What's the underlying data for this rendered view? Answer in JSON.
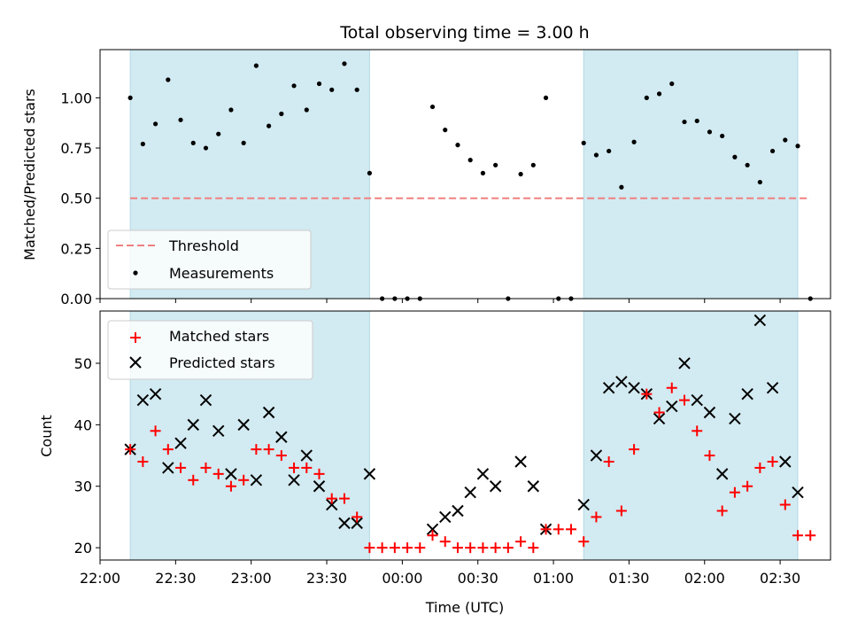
{
  "chart_data": [
    {
      "type": "scatter",
      "title": "Total observing time = 3.00 h",
      "xlabel": "",
      "ylabel": "Matched/Predicted stars",
      "ylim": [
        0,
        1.24
      ],
      "yticks": [
        "0.00",
        "0.25",
        "0.50",
        "0.75",
        "1.00"
      ],
      "ytick_values": [
        0,
        0.25,
        0.5,
        0.75,
        1.0
      ],
      "shaded_intervals": [
        [
          "22:12",
          "23:47"
        ],
        [
          "01:12",
          "02:37"
        ]
      ],
      "shade_color": "#add8e6",
      "threshold": {
        "name": "Threshold",
        "value": 0.5,
        "x_start": "22:12",
        "x_end": "02:42",
        "color": "#f08080"
      },
      "series": [
        {
          "name": "Measurements",
          "color": "#000000",
          "x": [
            "22:12",
            "22:17",
            "22:22",
            "22:27",
            "22:32",
            "22:37",
            "22:42",
            "22:47",
            "22:52",
            "22:57",
            "23:02",
            "23:07",
            "23:12",
            "23:17",
            "23:22",
            "23:27",
            "23:32",
            "23:37",
            "23:42",
            "23:47",
            "23:52",
            "23:57",
            "00:02",
            "00:07",
            "00:12",
            "00:17",
            "00:22",
            "00:27",
            "00:32",
            "00:37",
            "00:42",
            "00:47",
            "00:52",
            "00:57",
            "01:02",
            "01:07",
            "01:12",
            "01:17",
            "01:22",
            "01:27",
            "01:32",
            "01:37",
            "01:42",
            "01:47",
            "01:52",
            "01:57",
            "02:02",
            "02:07",
            "02:12",
            "02:17",
            "02:22",
            "02:27",
            "02:32",
            "02:37",
            "02:42"
          ],
          "y": [
            1.0,
            0.77,
            0.87,
            1.09,
            0.89,
            0.775,
            0.75,
            0.82,
            0.94,
            0.775,
            1.16,
            0.86,
            0.92,
            1.06,
            0.94,
            1.07,
            1.04,
            1.17,
            1.04,
            0.625,
            0,
            0,
            0,
            0,
            0.955,
            0.84,
            0.765,
            0.69,
            0.625,
            0.665,
            0,
            0.62,
            0.665,
            1.0,
            0,
            0,
            0.775,
            0.715,
            0.735,
            0.555,
            0.78,
            1.0,
            1.02,
            1.07,
            0.88,
            0.885,
            0.83,
            0.81,
            0.705,
            0.665,
            0.58,
            0.735,
            0.79,
            0.76,
            0
          ]
        }
      ]
    },
    {
      "type": "scatter",
      "title": "",
      "xlabel": "Time (UTC)",
      "ylabel": "Count",
      "ylim": [
        18,
        58.5
      ],
      "yticks": [
        "20",
        "30",
        "40",
        "50"
      ],
      "ytick_values": [
        20,
        30,
        40,
        50
      ],
      "xlim": [
        "22:00",
        "02:50"
      ],
      "xticks": [
        "22:00",
        "22:30",
        "23:00",
        "23:30",
        "00:00",
        "00:30",
        "01:00",
        "01:30",
        "02:00",
        "02:30"
      ],
      "shaded_intervals": [
        [
          "22:12",
          "23:47"
        ],
        [
          "01:12",
          "02:37"
        ]
      ],
      "series": [
        {
          "name": "Matched stars",
          "color": "#ff0000",
          "marker": "+",
          "x": [
            "22:12",
            "22:17",
            "22:22",
            "22:27",
            "22:32",
            "22:37",
            "22:42",
            "22:47",
            "22:52",
            "22:57",
            "23:02",
            "23:07",
            "23:12",
            "23:17",
            "23:22",
            "23:27",
            "23:32",
            "23:37",
            "23:42",
            "23:47",
            "23:52",
            "23:57",
            "00:02",
            "00:07",
            "00:12",
            "00:17",
            "00:22",
            "00:27",
            "00:32",
            "00:37",
            "00:42",
            "00:47",
            "00:52",
            "00:57",
            "01:02",
            "01:07",
            "01:12",
            "01:17",
            "01:22",
            "01:27",
            "01:32",
            "01:37",
            "01:42",
            "01:47",
            "01:52",
            "01:57",
            "02:02",
            "02:07",
            "02:12",
            "02:17",
            "02:22",
            "02:27",
            "02:32",
            "02:37",
            "02:42"
          ],
          "y": [
            36,
            34,
            39,
            36,
            33,
            31,
            33,
            32,
            30,
            31,
            36,
            36,
            35,
            33,
            33,
            32,
            28,
            28,
            25,
            20,
            20,
            20,
            20,
            20,
            22,
            21,
            20,
            20,
            20,
            20,
            20,
            21,
            20,
            23,
            23,
            23,
            21,
            25,
            34,
            26,
            36,
            45,
            42,
            46,
            44,
            39,
            35,
            26,
            29,
            30,
            33,
            34,
            27,
            22,
            22
          ]
        },
        {
          "name": "Predicted stars",
          "color": "#000000",
          "marker": "x",
          "x": [
            "22:12",
            "22:17",
            "22:22",
            "22:27",
            "22:32",
            "22:37",
            "22:42",
            "22:47",
            "22:52",
            "22:57",
            "23:02",
            "23:07",
            "23:12",
            "23:17",
            "23:22",
            "23:27",
            "23:32",
            "23:37",
            "23:42",
            "23:47",
            "00:12",
            "00:17",
            "00:22",
            "00:27",
            "00:32",
            "00:37",
            "00:47",
            "00:52",
            "00:57",
            "01:12",
            "01:17",
            "01:22",
            "01:27",
            "01:32",
            "01:37",
            "01:42",
            "01:47",
            "01:52",
            "01:57",
            "02:02",
            "02:07",
            "02:12",
            "02:17",
            "02:22",
            "02:27",
            "02:32",
            "02:37"
          ],
          "y": [
            36,
            44,
            45,
            33,
            37,
            40,
            44,
            39,
            32,
            40,
            31,
            42,
            38,
            31,
            35,
            30,
            27,
            24,
            24,
            32,
            23,
            25,
            26,
            29,
            32,
            30,
            34,
            30,
            23,
            27,
            35,
            46,
            47,
            46,
            45,
            41,
            43,
            50,
            44,
            42,
            32,
            41,
            45,
            57,
            46,
            34,
            29
          ]
        }
      ]
    }
  ]
}
